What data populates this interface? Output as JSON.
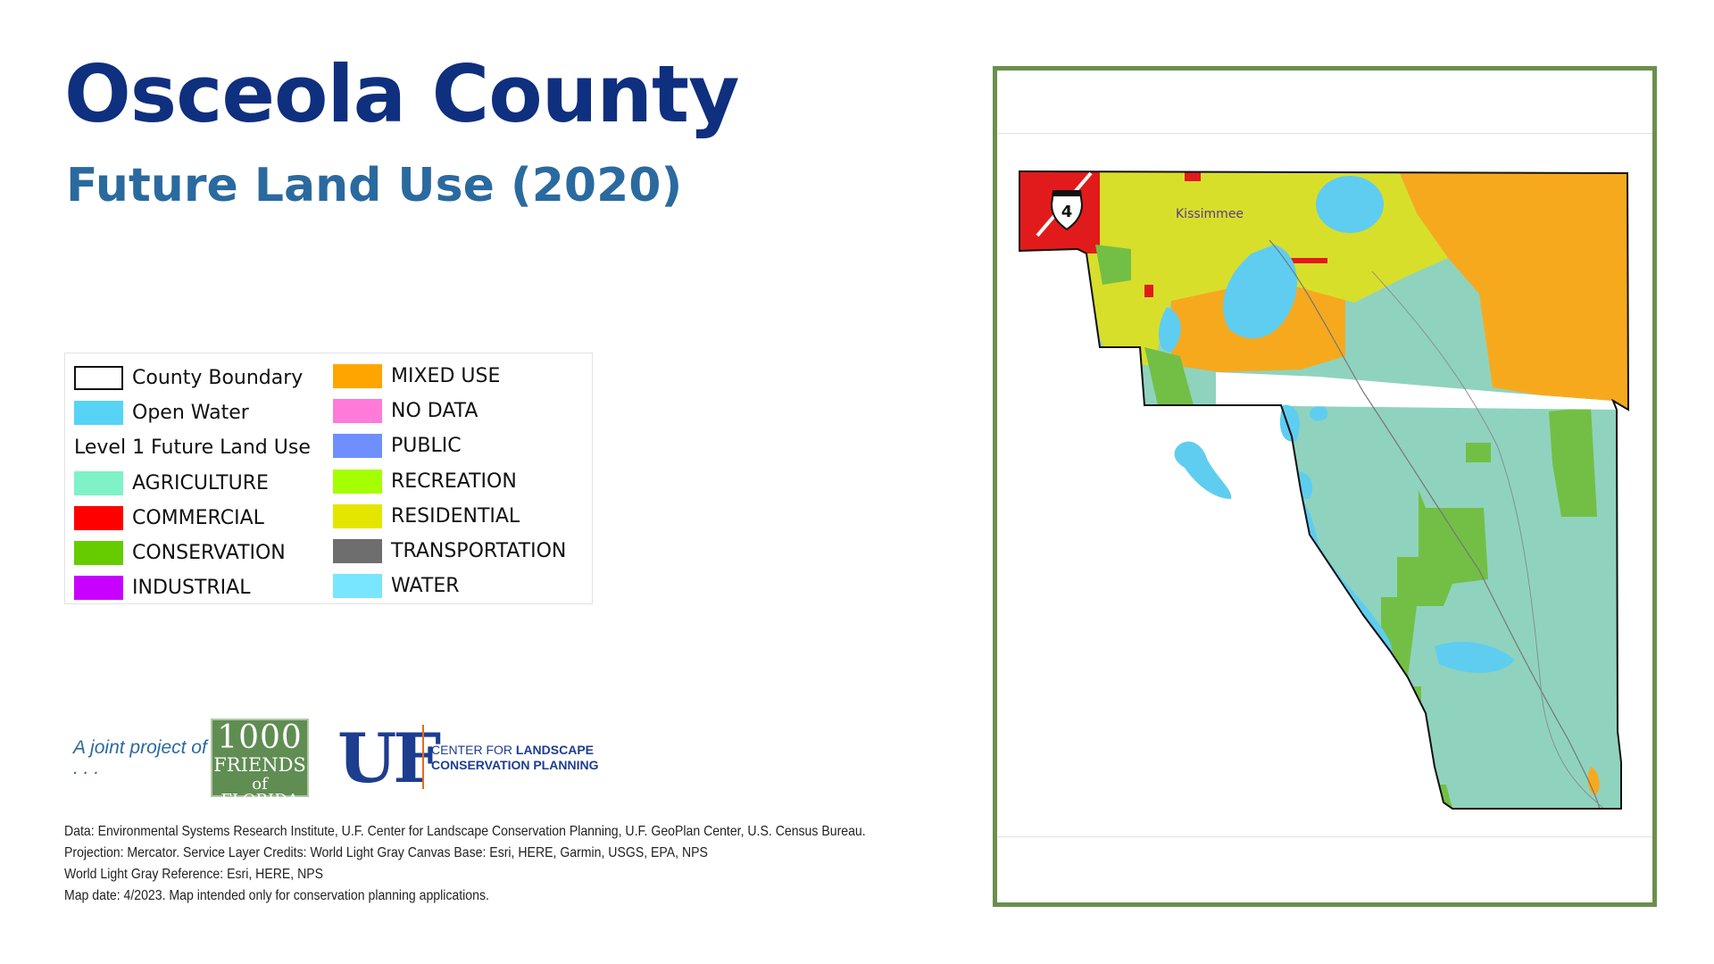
{
  "header": {
    "title": "Osceola County",
    "subtitle": "Future Land Use (2020)"
  },
  "legend": {
    "items": [
      {
        "label": "County Boundary",
        "color": "#ffffff",
        "type": "outline"
      },
      {
        "label": "Open Water",
        "color": "#56d3f5"
      },
      {
        "label": "Level 1 Future Land Use",
        "type": "heading"
      },
      {
        "label": "AGRICULTURE",
        "color": "#7ff2c8"
      },
      {
        "label": "COMMERCIAL",
        "color": "#ff0000"
      },
      {
        "label": "CONSERVATION",
        "color": "#66cc00"
      },
      {
        "label": "INDUSTRIAL",
        "color": "#c800ff"
      },
      {
        "label": "MIXED USE",
        "color": "#ffa500"
      },
      {
        "label": "NO DATA",
        "color": "#ff7ad9"
      },
      {
        "label": "PUBLIC",
        "color": "#6f8fff"
      },
      {
        "label": "RECREATION",
        "color": "#a6ff00"
      },
      {
        "label": "RESIDENTIAL",
        "color": "#e5e600"
      },
      {
        "label": "TRANSPORTATION",
        "color": "#6e6e6e"
      },
      {
        "label": "WATER",
        "color": "#79e6ff"
      }
    ]
  },
  "map": {
    "place_label": "Kissimmee",
    "highway_shield": "4",
    "render_colors": {
      "agriculture": "#8fd3be",
      "mixed_use": "#f7a91e",
      "conservation": "#73bf45",
      "water": "#5fcdf0",
      "residential": "#d8df2a",
      "commercial": "#e11b1b",
      "boundary": "#111111"
    }
  },
  "footer": {
    "joint_project": "A joint project of . . .",
    "thousand_friends": {
      "line1": "1000",
      "line2": "FRIENDS",
      "line3": "of FLORIDA"
    },
    "uf_logo": "UF",
    "clcp_line1_prefix": "CENTER FOR ",
    "clcp_line1_bold": "LANDSCAPE",
    "clcp_line2": "CONSERVATION PLANNING",
    "credits": [
      "Data: Environmental Systems Research Institute, U.F. Center for Landscape Conservation Planning, U.F. GeoPlan Center, U.S. Census Bureau.",
      "Projection: Mercator. Service Layer Credits: World Light Gray Canvas Base: Esri, HERE, Garmin, USGS, EPA, NPS",
      "World Light Gray Reference: Esri, HERE, NPS",
      "Map date: 4/2023. Map intended only for conservation planning applications."
    ]
  }
}
